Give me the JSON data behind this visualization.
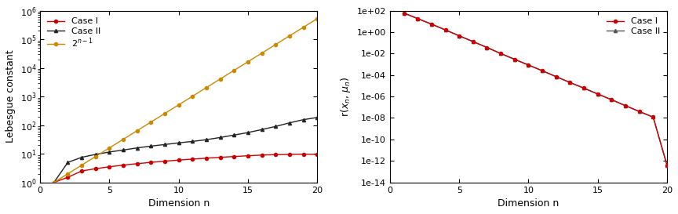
{
  "n_values": [
    1,
    2,
    3,
    4,
    5,
    6,
    7,
    8,
    9,
    10,
    11,
    12,
    13,
    14,
    15,
    16,
    17,
    18,
    19,
    20
  ],
  "lebesgue_case1": [
    1.0,
    1.5,
    2.5,
    3.0,
    3.5,
    4.0,
    4.5,
    5.0,
    5.5,
    6.0,
    6.5,
    7.0,
    7.5,
    8.0,
    8.5,
    9.0,
    9.3,
    9.5,
    9.7,
    9.5
  ],
  "lebesgue_case2": [
    1.0,
    5.0,
    7.5,
    9.5,
    11.5,
    13.5,
    16.0,
    18.5,
    21.0,
    24.0,
    27.0,
    31.0,
    37.0,
    45.0,
    55.0,
    70.0,
    90.0,
    120.0,
    155.0,
    185.0
  ],
  "rn_case1": [
    60.0,
    18.0,
    5.5,
    1.6,
    0.45,
    0.13,
    0.037,
    0.01,
    0.0029,
    0.00085,
    0.00025,
    7e-05,
    2e-05,
    6e-06,
    1.7e-06,
    5e-07,
    1.4e-07,
    4e-08,
    1.2e-08,
    4e-13
  ],
  "rn_case2": [
    60.0,
    18.0,
    5.5,
    1.6,
    0.45,
    0.13,
    0.037,
    0.01,
    0.0029,
    0.00085,
    0.00025,
    7e-05,
    2e-05,
    6e-06,
    1.7e-06,
    5e-07,
    1.4e-07,
    4e-08,
    1.2e-08,
    4e-13
  ],
  "color_case1": "#cc0000",
  "color_case2_left": "#222222",
  "color_case2_right": "#555555",
  "color_ref": "#cc8800",
  "xlabel": "Dimension n",
  "ylabel_left": "Lebesgue constant",
  "ylabel_right": "r(x_n, mu_n)",
  "xlim": [
    0,
    20
  ],
  "ylim_left": [
    1.0,
    1000000.0
  ],
  "ylim_right": [
    1e-14,
    100.0
  ],
  "legend1_labels": [
    "Case I",
    "Case II",
    "2^{n-1}"
  ],
  "legend2_labels": [
    "Case I",
    "Case II"
  ],
  "bg_color": "#ffffff"
}
